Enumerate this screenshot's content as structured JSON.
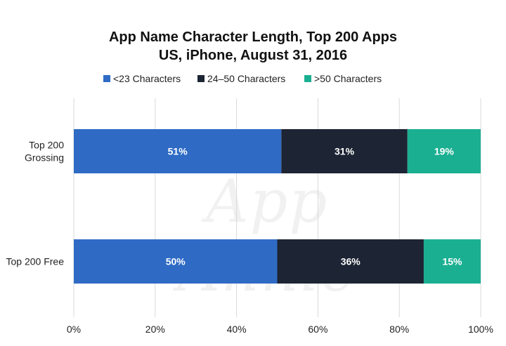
{
  "title_line1": "App Name Character Length, Top 200 Apps",
  "title_line2": "US, iPhone, August 31, 2016",
  "watermark": "App Annie",
  "legend": [
    {
      "label": "<23 Characters",
      "color": "#2f6bc5"
    },
    {
      "label": "24–50 Characters",
      "color": "#1d2433"
    },
    {
      "label": ">50 Characters",
      "color": "#1baf92"
    }
  ],
  "chart_data": {
    "type": "bar",
    "orientation": "horizontal",
    "stacked": true,
    "categories": [
      "Top 200\nGrossing",
      "Top 200 Free"
    ],
    "series": [
      {
        "name": "<23 Characters",
        "color": "#2f6bc5",
        "values": [
          51,
          50
        ],
        "labels": [
          "51%",
          "50%"
        ]
      },
      {
        "name": "24–50 Characters",
        "color": "#1d2433",
        "values": [
          31,
          36
        ],
        "labels": [
          "31%",
          "36%"
        ]
      },
      {
        "name": ">50 Characters",
        "color": "#1baf92",
        "values": [
          19,
          15
        ],
        "labels": [
          "19%",
          "15%"
        ]
      }
    ],
    "xlim": [
      0,
      100
    ],
    "x_ticks": [
      0,
      20,
      40,
      60,
      80,
      100
    ],
    "x_tick_labels": [
      "0%",
      "20%",
      "40%",
      "60%",
      "80%",
      "100%"
    ],
    "grid": true,
    "legend_position": "top"
  }
}
